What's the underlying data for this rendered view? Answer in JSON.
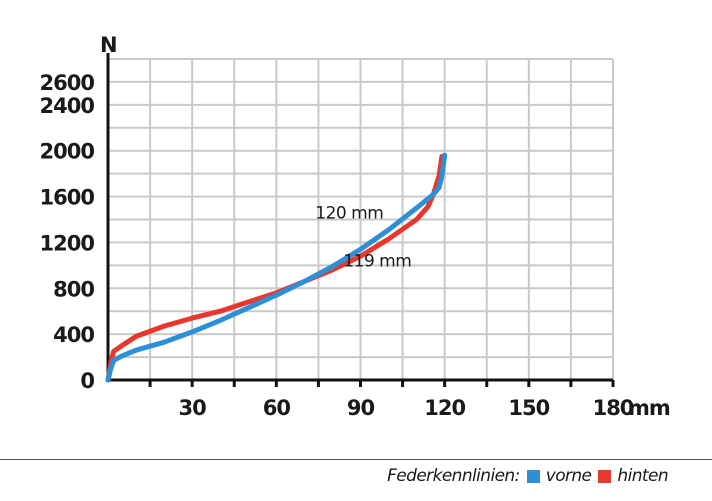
{
  "chart_data": {
    "type": "line",
    "ylabel": "N",
    "xlim": [
      0,
      180
    ],
    "ylim": [
      0,
      2800
    ],
    "x_ticks": [
      30,
      60,
      90,
      120,
      150,
      180
    ],
    "x_tick_labels": [
      "30",
      "60",
      "90",
      "120",
      "150",
      "180"
    ],
    "x_unit": "mm",
    "y_ticks": [
      0,
      400,
      800,
      1200,
      1600,
      2000,
      2400,
      2600
    ],
    "y_tick_labels": [
      "0",
      "400",
      "800",
      "1200",
      "1600",
      "2000",
      "2400",
      "2600"
    ],
    "grid": true,
    "series": [
      {
        "name": "vorne",
        "color": "#2f8fd6",
        "x": [
          0,
          1,
          2,
          5,
          10,
          20,
          30,
          40,
          50,
          60,
          70,
          80,
          90,
          100,
          110,
          116,
          118,
          119,
          120
        ],
        "y": [
          0,
          100,
          170,
          210,
          260,
          330,
          420,
          520,
          630,
          740,
          860,
          990,
          1140,
          1310,
          1500,
          1620,
          1680,
          1780,
          1960
        ]
      },
      {
        "name": "hinten",
        "color": "#e8372c",
        "x": [
          0,
          1,
          2,
          5,
          10,
          20,
          30,
          40,
          50,
          60,
          70,
          80,
          90,
          100,
          110,
          114,
          116,
          118,
          119
        ],
        "y": [
          0,
          150,
          250,
          300,
          380,
          470,
          540,
          600,
          680,
          760,
          860,
          960,
          1080,
          1230,
          1400,
          1510,
          1620,
          1780,
          1950
        ]
      }
    ],
    "annotations": [
      {
        "text": "120 mm",
        "x": 86,
        "y": 1410
      },
      {
        "text": "119 mm",
        "x": 96,
        "y": 990
      }
    ]
  },
  "footer": {
    "label": "Federkennlinien:",
    "legend": [
      {
        "name": "vorne",
        "color": "#2f8fd6"
      },
      {
        "name": "hinten",
        "color": "#e8372c"
      }
    ]
  }
}
